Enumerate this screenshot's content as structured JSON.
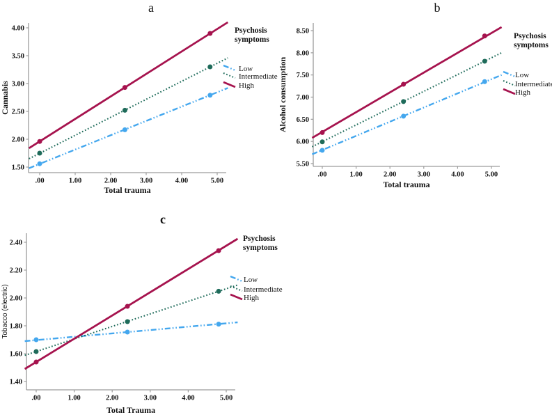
{
  "figure": {
    "background": "#ffffff",
    "axis_color": "#9c9c9c",
    "text_color": "#111111"
  },
  "chart_data": [
    {
      "type": "line",
      "panel_label": "a",
      "xlabel": "Total trauma",
      "ylabel": "Cannabis",
      "xlim": [
        -0.3,
        5.3
      ],
      "ylim": [
        1.4,
        4.1
      ],
      "x_ticks": {
        "values": [
          0,
          1,
          2,
          3,
          4,
          5
        ],
        "labels": [
          ".00",
          "1.00",
          "2.00",
          "3.00",
          "4.00",
          "5.00"
        ]
      },
      "y_ticks": {
        "values": [
          1.5,
          2.0,
          2.5,
          3.0,
          3.5,
          4.0
        ],
        "labels": [
          "1.50",
          "2.00",
          "2.50",
          "3.00",
          "3.50",
          "4.00"
        ]
      },
      "legend": {
        "title_lines": [
          "Psychosis",
          "symptoms"
        ],
        "entries": [
          "Low",
          "Intermediate",
          "High"
        ]
      },
      "series": [
        {
          "name": "Low",
          "color": "#44A7EE",
          "style": "dash-dot-dot",
          "line": {
            "x": [
              -0.3,
              5.3
            ],
            "y": [
              1.48,
              2.92
            ]
          },
          "markers": [
            [
              0,
              1.56
            ],
            [
              2.4,
              2.17
            ],
            [
              4.8,
              2.79
            ]
          ]
        },
        {
          "name": "Intermediate",
          "color": "#1E6B5A",
          "style": "dotted",
          "line": {
            "x": [
              -0.3,
              5.3
            ],
            "y": [
              1.65,
              3.46
            ]
          },
          "markers": [
            [
              0,
              1.75
            ],
            [
              2.4,
              2.52
            ],
            [
              4.8,
              3.3
            ]
          ]
        },
        {
          "name": "High",
          "color": "#A6134E",
          "style": "solid",
          "line": {
            "x": [
              -0.3,
              5.3
            ],
            "y": [
              1.84,
              4.1
            ]
          },
          "markers": [
            [
              0,
              1.96
            ],
            [
              2.4,
              2.93
            ],
            [
              4.8,
              3.9
            ]
          ]
        }
      ]
    },
    {
      "type": "line",
      "panel_label": "b",
      "xlabel": "Total trauma",
      "ylabel": "Alcohol consumption",
      "xlim": [
        -0.3,
        5.3
      ],
      "ylim": [
        5.45,
        8.65
      ],
      "x_ticks": {
        "values": [
          0,
          1,
          2,
          3,
          4,
          5
        ],
        "labels": [
          ".00",
          "1.00",
          "2.00",
          "3.00",
          "4.00",
          "5.00"
        ]
      },
      "y_ticks": {
        "values": [
          5.5,
          6.0,
          6.5,
          7.0,
          7.5,
          8.0,
          8.5
        ],
        "labels": [
          "5.50",
          "6.00",
          "6.50",
          "7.00",
          "7.50",
          "8.00",
          "8.50"
        ]
      },
      "legend": {
        "title_lines": [
          "Psychosis",
          "symptoms"
        ],
        "entries": [
          "Low",
          "Intermediate",
          "High"
        ]
      },
      "series": [
        {
          "name": "Low",
          "color": "#44A7EE",
          "style": "dash-dot-dot",
          "line": {
            "x": [
              -0.3,
              5.3
            ],
            "y": [
              5.71,
              7.5
            ]
          },
          "markers": [
            [
              0,
              5.8
            ],
            [
              2.4,
              6.57
            ],
            [
              4.8,
              7.35
            ]
          ]
        },
        {
          "name": "Intermediate",
          "color": "#1E6B5A",
          "style": "dotted",
          "line": {
            "x": [
              -0.3,
              5.3
            ],
            "y": [
              5.88,
              8.0
            ]
          },
          "markers": [
            [
              0,
              5.99
            ],
            [
              2.4,
              6.9
            ],
            [
              4.8,
              7.81
            ]
          ]
        },
        {
          "name": "High",
          "color": "#A6134E",
          "style": "solid",
          "line": {
            "x": [
              -0.3,
              5.3
            ],
            "y": [
              6.08,
              8.58
            ]
          },
          "markers": [
            [
              0,
              6.2
            ],
            [
              2.4,
              7.29
            ],
            [
              4.8,
              8.38
            ]
          ]
        }
      ]
    },
    {
      "type": "line",
      "panel_label": "c",
      "xlabel": "Total Trauma",
      "ylabel": "Tobacco (electric)",
      "xlim": [
        -0.3,
        5.3
      ],
      "ylim": [
        1.34,
        2.46
      ],
      "x_ticks": {
        "values": [
          0,
          1,
          2,
          3,
          4,
          5
        ],
        "labels": [
          ".00",
          "1.00",
          "2.00",
          "3.00",
          "4.00",
          "5.00"
        ]
      },
      "y_ticks": {
        "values": [
          1.4,
          1.6,
          1.8,
          2.0,
          2.2,
          2.4
        ],
        "labels": [
          "1.40",
          "1.60",
          "1.80",
          "2.00",
          "2.20",
          "2.40"
        ]
      },
      "legend": {
        "title_lines": [
          "Psychosis",
          "symptoms"
        ],
        "entries": [
          "Low",
          "Intermediate",
          "High"
        ]
      },
      "series": [
        {
          "name": "Low",
          "color": "#44A7EE",
          "style": "dash-dot-dot",
          "line": {
            "x": [
              -0.3,
              5.3
            ],
            "y": [
              1.69,
              1.825
            ]
          },
          "markers": [
            [
              0,
              1.7
            ],
            [
              2.4,
              1.755
            ],
            [
              4.8,
              1.812
            ]
          ]
        },
        {
          "name": "Intermediate",
          "color": "#1E6B5A",
          "style": "dotted",
          "line": {
            "x": [
              -0.3,
              5.3
            ],
            "y": [
              1.588,
              2.093
            ]
          },
          "markers": [
            [
              0,
              1.615
            ],
            [
              2.4,
              1.83
            ],
            [
              4.8,
              2.048
            ]
          ]
        },
        {
          "name": "High",
          "color": "#A6134E",
          "style": "solid",
          "line": {
            "x": [
              -0.3,
              5.3
            ],
            "y": [
              1.49,
              2.425
            ]
          },
          "markers": [
            [
              0,
              1.54
            ],
            [
              2.4,
              1.94
            ],
            [
              4.8,
              2.34
            ]
          ]
        }
      ]
    }
  ]
}
